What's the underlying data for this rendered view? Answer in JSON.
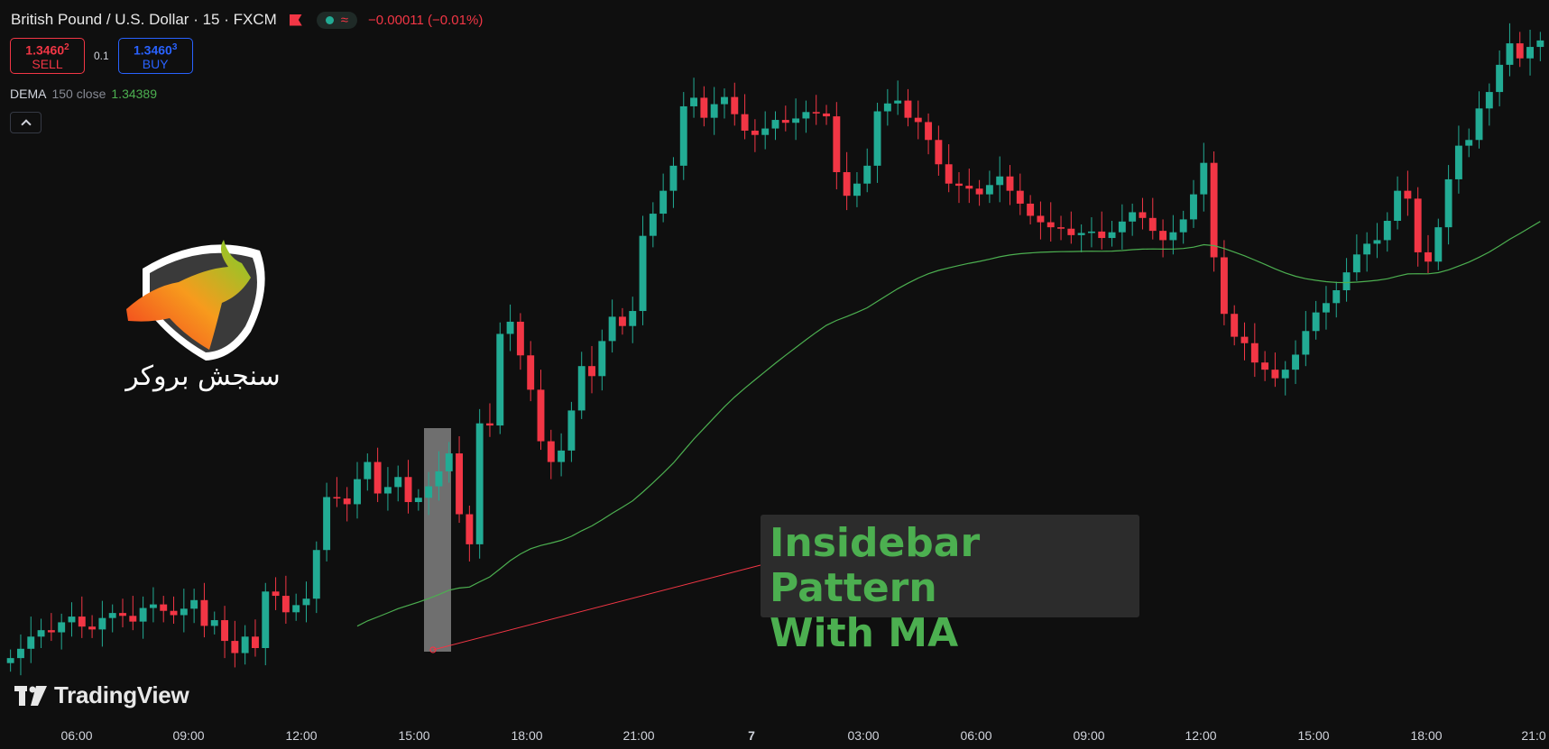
{
  "header": {
    "symbol": "British Pound / U.S. Dollar · 15 · FXCM",
    "change": "−0.00011 (−0.01%)"
  },
  "trade": {
    "sell": {
      "price_main": "1.3460",
      "price_pip": "2",
      "label": "SELL"
    },
    "quantity": "0.1",
    "buy": {
      "price_main": "1.3460",
      "price_pip": "3",
      "label": "BUY"
    }
  },
  "indicator": {
    "name": "DEMA",
    "params": "150 close",
    "value": "1.34389"
  },
  "annotation": {
    "text": "Insidebar Pattern\nWith MA"
  },
  "watermark": {
    "broker_name": "سنجش بروکر",
    "tv_brand": "TradingView"
  },
  "time_axis": {
    "ticks": [
      "06:00",
      "09:00",
      "12:00",
      "15:00",
      "18:00",
      "21:00",
      "7",
      "03:00",
      "06:00",
      "09:00",
      "12:00",
      "15:00",
      "18:00",
      "21:0"
    ],
    "bold_tick": "7"
  },
  "colors": {
    "up": "#22ab94",
    "down": "#f23645",
    "ma": "#4caf50",
    "background": "#0f0f0f",
    "annotation_text": "#4caf50",
    "annotation_line": "#f23645",
    "highlight": "#808080"
  },
  "icons": [
    "flag-icon",
    "status-dot-icon",
    "wave-icon",
    "chevron-up-icon",
    "broker-logo-icon",
    "tradingview-icon"
  ],
  "chart_data": {
    "type": "candlestick",
    "symbol": "British Pound / U.S. Dollar",
    "interval": "15",
    "exchange": "FXCM",
    "x_ticks": [
      "06:00",
      "09:00",
      "12:00",
      "15:00",
      "18:00",
      "21:00",
      "7",
      "03:00",
      "06:00",
      "09:00",
      "12:00",
      "15:00",
      "18:00",
      "21:0"
    ],
    "candles_close_trend": [
      0.088,
      0.101,
      0.118,
      0.127,
      0.124,
      0.138,
      0.146,
      0.132,
      0.128,
      0.144,
      0.151,
      0.147,
      0.139,
      0.158,
      0.163,
      0.154,
      0.148,
      0.157,
      0.169,
      0.133,
      0.141,
      0.112,
      0.095,
      0.118,
      0.102,
      0.181,
      0.175,
      0.152,
      0.162,
      0.171,
      0.239,
      0.313,
      0.311,
      0.303,
      0.338,
      0.362,
      0.318,
      0.327,
      0.341,
      0.306,
      0.312,
      0.328,
      0.349,
      0.374,
      0.289,
      0.247,
      0.416,
      0.413,
      0.541,
      0.558,
      0.511,
      0.463,
      0.391,
      0.362,
      0.378,
      0.434,
      0.496,
      0.482,
      0.531,
      0.565,
      0.552,
      0.573,
      0.678,
      0.709,
      0.741,
      0.776,
      0.859,
      0.871,
      0.843,
      0.862,
      0.872,
      0.848,
      0.825,
      0.819,
      0.828,
      0.84,
      0.836,
      0.842,
      0.851,
      0.849,
      0.845,
      0.767,
      0.734,
      0.751,
      0.776,
      0.852,
      0.863,
      0.867,
      0.843,
      0.837,
      0.812,
      0.778,
      0.751,
      0.748,
      0.744,
      0.736,
      0.749,
      0.761,
      0.741,
      0.723,
      0.706,
      0.697,
      0.69,
      0.688,
      0.679,
      0.682,
      0.684,
      0.675,
      0.683,
      0.698,
      0.711,
      0.703,
      0.685,
      0.672,
      0.683,
      0.701,
      0.736,
      0.78,
      0.648,
      0.569,
      0.537,
      0.528,
      0.501,
      0.491,
      0.479,
      0.491,
      0.512,
      0.545,
      0.571,
      0.584,
      0.602,
      0.627,
      0.652,
      0.667,
      0.672,
      0.699,
      0.741,
      0.73,
      0.655,
      0.642,
      0.69,
      0.757,
      0.804,
      0.812,
      0.856,
      0.879,
      0.917,
      0.947,
      0.926,
      0.942,
      0.951
    ],
    "candles_open_trend": [
      0.081,
      0.088,
      0.101,
      0.118,
      0.127,
      0.124,
      0.138,
      0.146,
      0.132,
      0.128,
      0.144,
      0.151,
      0.147,
      0.139,
      0.158,
      0.163,
      0.154,
      0.148,
      0.157,
      0.169,
      0.133,
      0.141,
      0.112,
      0.095,
      0.118,
      0.102,
      0.181,
      0.175,
      0.152,
      0.162,
      0.171,
      0.239,
      0.313,
      0.311,
      0.303,
      0.338,
      0.362,
      0.318,
      0.327,
      0.341,
      0.306,
      0.312,
      0.328,
      0.349,
      0.374,
      0.289,
      0.247,
      0.416,
      0.413,
      0.541,
      0.558,
      0.511,
      0.463,
      0.391,
      0.362,
      0.378,
      0.434,
      0.496,
      0.482,
      0.531,
      0.565,
      0.552,
      0.573,
      0.678,
      0.709,
      0.741,
      0.776,
      0.859,
      0.871,
      0.843,
      0.862,
      0.872,
      0.848,
      0.825,
      0.819,
      0.828,
      0.84,
      0.836,
      0.842,
      0.851,
      0.849,
      0.845,
      0.767,
      0.734,
      0.751,
      0.776,
      0.852,
      0.863,
      0.867,
      0.843,
      0.837,
      0.812,
      0.778,
      0.751,
      0.748,
      0.744,
      0.736,
      0.749,
      0.761,
      0.741,
      0.723,
      0.706,
      0.697,
      0.69,
      0.688,
      0.679,
      0.682,
      0.684,
      0.675,
      0.683,
      0.698,
      0.711,
      0.703,
      0.685,
      0.672,
      0.683,
      0.701,
      0.736,
      0.78,
      0.648,
      0.569,
      0.537,
      0.528,
      0.501,
      0.491,
      0.479,
      0.491,
      0.512,
      0.545,
      0.571,
      0.584,
      0.602,
      0.627,
      0.652,
      0.667,
      0.672,
      0.699,
      0.741,
      0.73,
      0.655,
      0.642,
      0.69,
      0.757,
      0.804,
      0.812,
      0.856,
      0.879,
      0.917,
      0.947,
      0.926,
      0.942
    ],
    "ma_series": {
      "name": "DEMA 150 close",
      "last_value": 1.34389
    },
    "highlighted_pattern": "Insidebar Pattern"
  }
}
